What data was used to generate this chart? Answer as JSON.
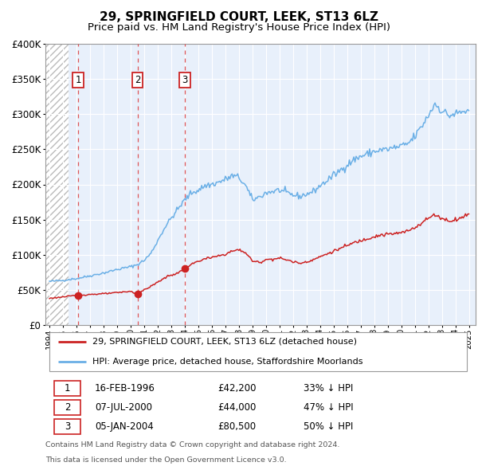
{
  "title": "29, SPRINGFIELD COURT, LEEK, ST13 6LZ",
  "subtitle": "Price paid vs. HM Land Registry's House Price Index (HPI)",
  "legend_line1": "29, SPRINGFIELD COURT, LEEK, ST13 6LZ (detached house)",
  "legend_line2": "HPI: Average price, detached house, Staffordshire Moorlands",
  "footnote1": "Contains HM Land Registry data © Crown copyright and database right 2024.",
  "footnote2": "This data is licensed under the Open Government Licence v3.0.",
  "purchases": [
    {
      "label": "1",
      "price": 42200,
      "x_year": 1996.12
    },
    {
      "label": "2",
      "price": 44000,
      "x_year": 2000.51
    },
    {
      "label": "3",
      "price": 80500,
      "x_year": 2004.01
    }
  ],
  "table_rows": [
    {
      "num": "1",
      "date": "16-FEB-1996",
      "price": "£42,200",
      "hpi": "33% ↓ HPI"
    },
    {
      "num": "2",
      "date": "07-JUL-2000",
      "price": "£44,000",
      "hpi": "47% ↓ HPI"
    },
    {
      "num": "3",
      "date": "05-JAN-2004",
      "price": "£80,500",
      "hpi": "50% ↓ HPI"
    }
  ],
  "ylim": [
    0,
    400000
  ],
  "yticks": [
    0,
    50000,
    100000,
    150000,
    200000,
    250000,
    300000,
    350000,
    400000
  ],
  "xlim_start": 1993.7,
  "xlim_end": 2025.5,
  "hatch_end_year": 1995.4,
  "plot_bg": "#e8f0fb",
  "grid_color": "#ffffff",
  "hpi_color": "#6aafe6",
  "price_color": "#cc2222",
  "vline_color": "#dd4444",
  "label_box_color": "#cc2222",
  "title_fontsize": 11,
  "subtitle_fontsize": 9.5
}
